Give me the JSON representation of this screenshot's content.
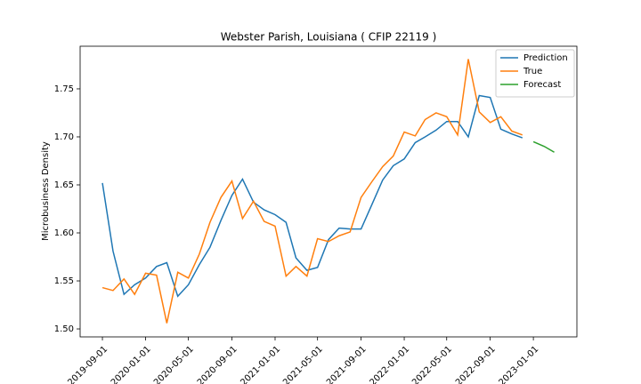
{
  "chart_data": {
    "type": "line",
    "title": "Webster Parish, Louisiana ( CFIP 22119 )",
    "y_label": "Microbusiness Density",
    "x": [
      "2019-09-01",
      "2019-10-01",
      "2019-11-01",
      "2019-12-01",
      "2020-01-01",
      "2020-02-01",
      "2020-03-01",
      "2020-04-01",
      "2020-05-01",
      "2020-06-01",
      "2020-07-01",
      "2020-08-01",
      "2020-09-01",
      "2020-10-01",
      "2020-11-01",
      "2020-12-01",
      "2021-01-01",
      "2021-02-01",
      "2021-03-01",
      "2021-04-01",
      "2021-05-01",
      "2021-06-01",
      "2021-07-01",
      "2021-08-01",
      "2021-09-01",
      "2021-10-01",
      "2021-11-01",
      "2021-12-01",
      "2022-01-01",
      "2022-02-01",
      "2022-03-01",
      "2022-04-01",
      "2022-05-01",
      "2022-06-01",
      "2022-07-01",
      "2022-08-01",
      "2022-09-01",
      "2022-10-01",
      "2022-11-01",
      "2022-12-01",
      "2023-01-01",
      "2023-02-01",
      "2023-03-01"
    ],
    "series": [
      {
        "name": "Prediction",
        "color": "#1f77b4",
        "values": [
          1.652,
          1.581,
          1.536,
          1.546,
          1.553,
          1.565,
          1.569,
          1.534,
          1.546,
          1.567,
          1.585,
          1.613,
          1.639,
          1.656,
          1.632,
          1.624,
          1.619,
          1.611,
          1.574,
          1.561,
          1.564,
          1.593,
          1.605,
          1.604,
          1.604,
          1.629,
          1.655,
          1.67,
          1.677,
          1.694,
          1.7,
          1.707,
          1.716,
          1.716,
          1.7,
          1.743,
          1.741,
          1.708,
          1.703,
          1.699,
          null,
          null,
          null
        ]
      },
      {
        "name": "True",
        "color": "#ff7f0e",
        "values": [
          1.543,
          1.54,
          1.552,
          1.536,
          1.558,
          1.556,
          1.506,
          1.559,
          1.553,
          1.578,
          1.611,
          1.637,
          1.654,
          1.615,
          1.633,
          1.612,
          1.607,
          1.555,
          1.565,
          1.555,
          1.594,
          1.591,
          1.597,
          1.601,
          1.637,
          1.653,
          1.669,
          1.68,
          1.705,
          1.701,
          1.718,
          1.725,
          1.721,
          1.702,
          1.781,
          1.726,
          1.715,
          1.721,
          1.706,
          1.702,
          null,
          null,
          null
        ]
      },
      {
        "name": "Forecast",
        "color": "#2ca02c",
        "values": [
          null,
          null,
          null,
          null,
          null,
          null,
          null,
          null,
          null,
          null,
          null,
          null,
          null,
          null,
          null,
          null,
          null,
          null,
          null,
          null,
          null,
          null,
          null,
          null,
          null,
          null,
          null,
          null,
          null,
          null,
          null,
          null,
          null,
          null,
          null,
          null,
          null,
          null,
          null,
          null,
          1.695,
          1.69,
          1.684
        ]
      }
    ],
    "xlim": [
      "2019-06-30",
      "2023-05-04"
    ],
    "xticks": [
      "2019-09-01",
      "2020-01-01",
      "2020-05-01",
      "2020-09-01",
      "2021-01-01",
      "2021-05-01",
      "2021-09-01",
      "2022-01-01",
      "2022-05-01",
      "2022-09-01",
      "2023-01-01"
    ],
    "ylim": [
      1.4917,
      1.7944
    ],
    "yticks": [
      {
        "value": 1.5,
        "label": "1.50"
      },
      1.55,
      {
        "value": 1.6,
        "label": "1.60"
      },
      1.65,
      {
        "value": 1.7,
        "label": "1.70"
      },
      1.75
    ],
    "grid": false,
    "legend": "upper right"
  }
}
